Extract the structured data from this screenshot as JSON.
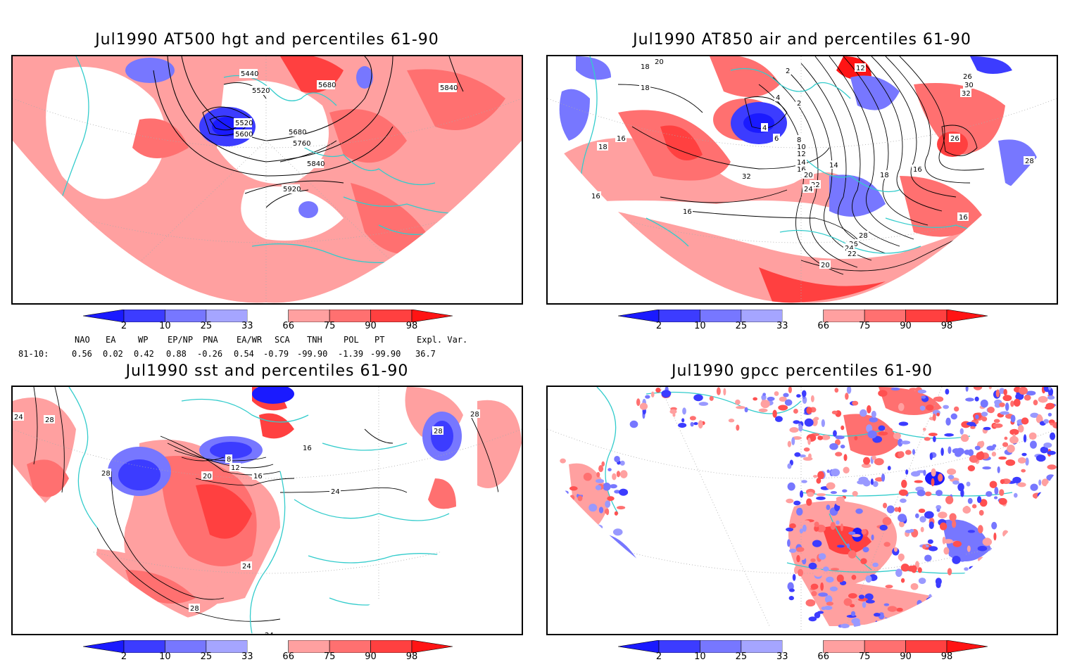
{
  "panels": [
    {
      "id": "hgt500",
      "title": "Jul1990 AT500 hgt and percentiles 61-90",
      "contour_labels": [
        "5440",
        "5520",
        "5680",
        "5840",
        "5520",
        "5600",
        "5680",
        "5760",
        "5840",
        "5920"
      ]
    },
    {
      "id": "air850",
      "title": "Jul1990 AT850 air and percentiles 61-90",
      "contour_labels": [
        "18",
        "20",
        "2",
        "12",
        "26",
        "30",
        "32",
        "18",
        "4",
        "2",
        "4",
        "6",
        "16",
        "8",
        "10",
        "12",
        "14",
        "16",
        "18",
        "20",
        "22",
        "24",
        "26",
        "28",
        "16",
        "32",
        "16",
        "14",
        "16",
        "28",
        "26",
        "24",
        "22",
        "20",
        "16",
        "18"
      ]
    },
    {
      "id": "sst",
      "title": "Jul1990 sst and percentiles 61-90",
      "contour_labels": [
        "24",
        "28",
        "28",
        "8",
        "12",
        "20",
        "16",
        "16",
        "24",
        "28",
        "28",
        "24",
        "28",
        "24"
      ]
    },
    {
      "id": "gpcc",
      "title": "Jul1990 gpcc percentiles 61-90",
      "contour_labels": []
    }
  ],
  "colorbar": {
    "labels": [
      "2",
      "10",
      "25",
      "33",
      "66",
      "75",
      "90",
      "98"
    ],
    "colors": {
      "blue_dark": "#1a1aff",
      "blue_mid": "#3c3cff",
      "blue_light": "#7777ff",
      "blue_pale": "#a5a5ff",
      "red_pale": "#ffa0a0",
      "red_light": "#ff7070",
      "red_mid": "#ff4040",
      "red_dark": "#ff1414"
    }
  },
  "teleconnections": {
    "headers": [
      "NAO",
      "EA",
      "WP",
      "EP/NP",
      "PNA",
      "EA/WR",
      "SCA",
      "TNH",
      "POL",
      "PT",
      "Expl. Var."
    ],
    "row_label": "81-10:",
    "values": [
      "0.56",
      "0.02",
      "0.42",
      "0.88",
      "-0.26",
      "0.54",
      "-0.79",
      "-99.90",
      "-1.39",
      "-99.90",
      "36.7"
    ]
  },
  "map_colors": {
    "land_outline": "#33cccc",
    "contour": "#000000",
    "grid": "#999999",
    "red": "#ff5050",
    "pale_red": "#ffa0a0",
    "blue": "#3c3cff",
    "pale_blue": "#9999ff"
  }
}
